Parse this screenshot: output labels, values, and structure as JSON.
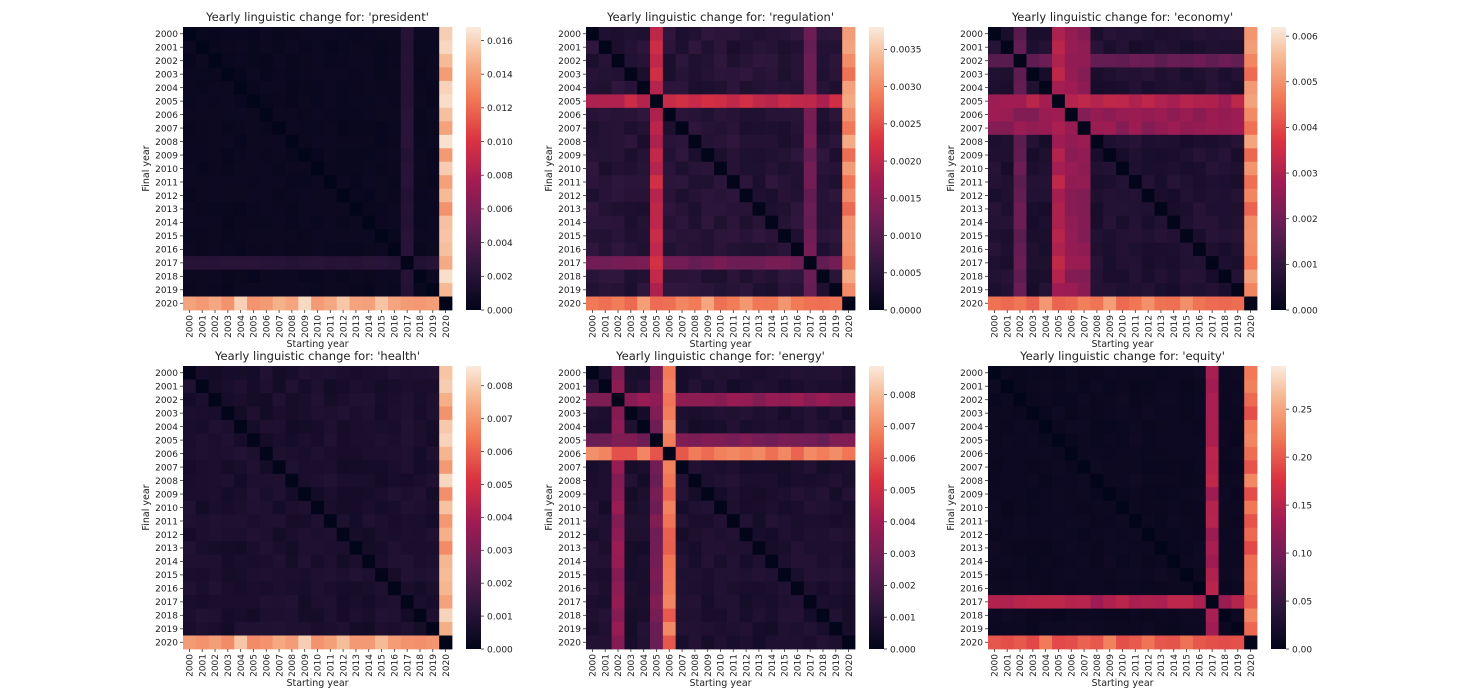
{
  "figure": {
    "panel_count": 6
  },
  "chart_data": [
    {
      "type": "heatmap",
      "title": "Yearly linguistic change for: 'president'",
      "xlabel": "Starting year",
      "ylabel": "Final year",
      "x_categories": [
        "2000",
        "2001",
        "2002",
        "2003",
        "2004",
        "2005",
        "2006",
        "2007",
        "2008",
        "2009",
        "2010",
        "2011",
        "2012",
        "2013",
        "2014",
        "2015",
        "2016",
        "2017",
        "2018",
        "2019",
        "2020"
      ],
      "y_categories": [
        "2000",
        "2001",
        "2002",
        "2003",
        "2004",
        "2005",
        "2006",
        "2007",
        "2008",
        "2009",
        "2010",
        "2011",
        "2012",
        "2013",
        "2014",
        "2015",
        "2016",
        "2017",
        "2018",
        "2019",
        "2020"
      ],
      "colorbar": {
        "min": 0,
        "max": 0.0168,
        "ticks": [
          0.0,
          0.002,
          0.004,
          0.006,
          0.008,
          0.01,
          0.012,
          0.014,
          0.016
        ],
        "decimals": 3
      },
      "colormap": "rocket",
      "base": 0.0005,
      "outliers": [
        {
          "year": "2017",
          "value": 0.002
        },
        {
          "year": "2020",
          "value": 0.015
        }
      ]
    },
    {
      "type": "heatmap",
      "title": "Yearly linguistic change for: 'regulation'",
      "xlabel": "Starting year",
      "ylabel": "Final year",
      "x_categories": [
        "2000",
        "2001",
        "2002",
        "2003",
        "2004",
        "2005",
        "2006",
        "2007",
        "2008",
        "2009",
        "2010",
        "2011",
        "2012",
        "2013",
        "2014",
        "2015",
        "2016",
        "2017",
        "2018",
        "2019",
        "2020"
      ],
      "y_categories": [
        "2000",
        "2001",
        "2002",
        "2003",
        "2004",
        "2005",
        "2006",
        "2007",
        "2008",
        "2009",
        "2010",
        "2011",
        "2012",
        "2013",
        "2014",
        "2015",
        "2016",
        "2017",
        "2018",
        "2019",
        "2020"
      ],
      "colorbar": {
        "min": 0,
        "max": 0.0038,
        "ticks": [
          0.0,
          0.0005,
          0.001,
          0.0015,
          0.002,
          0.0025,
          0.003,
          0.0035
        ],
        "decimals": 4
      },
      "colormap": "rocket",
      "base": 0.00045,
      "outliers": [
        {
          "year": "2005",
          "value": 0.002
        },
        {
          "year": "2017",
          "value": 0.0012
        },
        {
          "year": "2020",
          "value": 0.003
        }
      ]
    },
    {
      "type": "heatmap",
      "title": "Yearly linguistic change for: 'economy'",
      "xlabel": "Starting year",
      "ylabel": "Final year",
      "x_categories": [
        "2000",
        "2001",
        "2002",
        "2003",
        "2004",
        "2005",
        "2006",
        "2007",
        "2008",
        "2009",
        "2010",
        "2011",
        "2012",
        "2013",
        "2014",
        "2015",
        "2016",
        "2017",
        "2018",
        "2019",
        "2020"
      ],
      "y_categories": [
        "2000",
        "2001",
        "2002",
        "2003",
        "2004",
        "2005",
        "2006",
        "2007",
        "2008",
        "2009",
        "2010",
        "2011",
        "2012",
        "2013",
        "2014",
        "2015",
        "2016",
        "2017",
        "2018",
        "2019",
        "2020"
      ],
      "colorbar": {
        "min": 0,
        "max": 0.0062,
        "ticks": [
          0.0,
          0.001,
          0.002,
          0.003,
          0.004,
          0.005,
          0.006
        ],
        "decimals": 3
      },
      "colormap": "rocket",
      "base": 0.0006,
      "outliers": [
        {
          "year": "2002",
          "value": 0.0018
        },
        {
          "year": "2005",
          "value": 0.003
        },
        {
          "year": "2006",
          "value": 0.0025
        },
        {
          "year": "2007",
          "value": 0.0025
        },
        {
          "year": "2020",
          "value": 0.0048
        }
      ]
    },
    {
      "type": "heatmap",
      "title": "Yearly linguistic change for: 'health'",
      "xlabel": "Starting year",
      "ylabel": "Final year",
      "x_categories": [
        "2000",
        "2001",
        "2002",
        "2003",
        "2004",
        "2005",
        "2006",
        "2007",
        "2008",
        "2009",
        "2010",
        "2011",
        "2012",
        "2013",
        "2014",
        "2015",
        "2016",
        "2017",
        "2018",
        "2019",
        "2020"
      ],
      "y_categories": [
        "2000",
        "2001",
        "2002",
        "2003",
        "2004",
        "2005",
        "2006",
        "2007",
        "2008",
        "2009",
        "2010",
        "2011",
        "2012",
        "2013",
        "2014",
        "2015",
        "2016",
        "2017",
        "2018",
        "2019",
        "2020"
      ],
      "colorbar": {
        "min": 0,
        "max": 0.0086,
        "ticks": [
          0.0,
          0.001,
          0.002,
          0.003,
          0.004,
          0.005,
          0.006,
          0.007,
          0.008
        ],
        "decimals": 3
      },
      "colormap": "rocket",
      "base": 0.0007,
      "outliers": [
        {
          "year": "2020",
          "value": 0.0075
        }
      ]
    },
    {
      "type": "heatmap",
      "title": "Yearly linguistic change for: 'energy'",
      "xlabel": "Starting year",
      "ylabel": "Final year",
      "x_categories": [
        "2000",
        "2001",
        "2002",
        "2003",
        "2004",
        "2005",
        "2006",
        "2007",
        "2008",
        "2009",
        "2010",
        "2011",
        "2012",
        "2013",
        "2014",
        "2015",
        "2016",
        "2017",
        "2018",
        "2019",
        "2020"
      ],
      "y_categories": [
        "2000",
        "2001",
        "2002",
        "2003",
        "2004",
        "2005",
        "2006",
        "2007",
        "2008",
        "2009",
        "2010",
        "2011",
        "2012",
        "2013",
        "2014",
        "2015",
        "2016",
        "2017",
        "2018",
        "2019",
        "2020"
      ],
      "colorbar": {
        "min": 0,
        "max": 0.0089,
        "ticks": [
          0.0,
          0.001,
          0.002,
          0.003,
          0.004,
          0.005,
          0.006,
          0.007,
          0.008
        ],
        "decimals": 3
      },
      "colormap": "rocket",
      "base": 0.0008,
      "outliers": [
        {
          "year": "2002",
          "value": 0.0035
        },
        {
          "year": "2005",
          "value": 0.003
        },
        {
          "year": "2006",
          "value": 0.0065
        }
      ]
    },
    {
      "type": "heatmap",
      "title": "Yearly linguistic change for: 'equity'",
      "xlabel": "Starting year",
      "ylabel": "Final year",
      "x_categories": [
        "2000",
        "2001",
        "2002",
        "2003",
        "2004",
        "2005",
        "2006",
        "2007",
        "2008",
        "2009",
        "2010",
        "2011",
        "2012",
        "2013",
        "2014",
        "2015",
        "2016",
        "2017",
        "2018",
        "2019",
        "2020"
      ],
      "y_categories": [
        "2000",
        "2001",
        "2002",
        "2003",
        "2004",
        "2005",
        "2006",
        "2007",
        "2008",
        "2009",
        "2010",
        "2011",
        "2012",
        "2013",
        "2014",
        "2015",
        "2016",
        "2017",
        "2018",
        "2019",
        "2020"
      ],
      "colorbar": {
        "min": 0,
        "max": 0.295,
        "ticks": [
          0.0,
          0.05,
          0.1,
          0.15,
          0.2,
          0.25
        ],
        "decimals": 2
      },
      "colormap": "rocket",
      "base": 0.01,
      "outliers": [
        {
          "year": "2017",
          "value": 0.14
        },
        {
          "year": "2020",
          "value": 0.21
        }
      ]
    }
  ]
}
